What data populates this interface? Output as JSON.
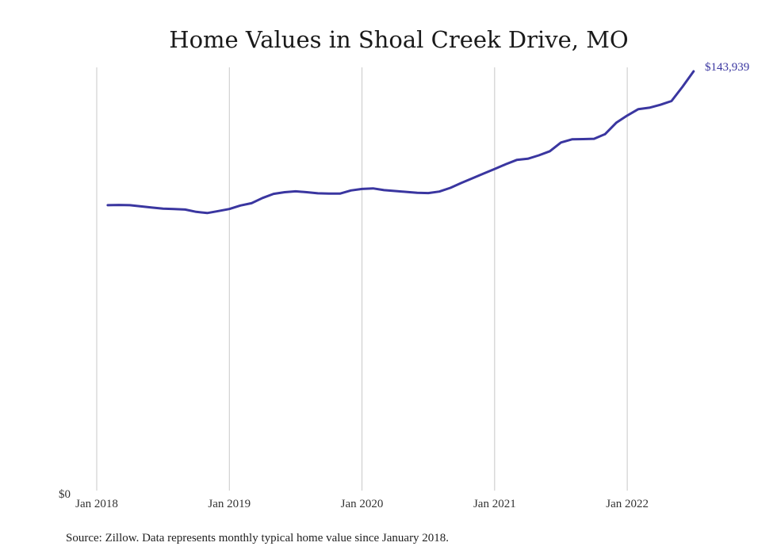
{
  "chart_data": {
    "type": "line",
    "title": "Home Values in Shoal Creek Drive, MO",
    "xlabel": "",
    "ylabel": "",
    "x_start": "2018-02",
    "x_frequency": "monthly",
    "x_ticks": [
      "Jan 2018",
      "Jan 2019",
      "Jan 2020",
      "Jan 2021",
      "Jan 2022"
    ],
    "y_tick_label": "$0",
    "ylim": [
      0,
      143939
    ],
    "grid": "vertical",
    "end_label": "$143,939",
    "series": [
      {
        "color": "#3a36a0",
        "values": [
          97800,
          97900,
          97800,
          97400,
          97000,
          96600,
          96500,
          96300,
          95500,
          95100,
          95800,
          96500,
          97700,
          98500,
          100300,
          101700,
          102300,
          102600,
          102300,
          101900,
          101800,
          101800,
          102900,
          103400,
          103600,
          103000,
          102700,
          102400,
          102100,
          102000,
          102500,
          103800,
          105500,
          107100,
          108700,
          110300,
          111900,
          113400,
          113800,
          115000,
          116400,
          119400,
          120500,
          120600,
          120700,
          122300,
          126200,
          128700,
          130900,
          131400,
          132400,
          133700,
          138600,
          143939
        ]
      }
    ]
  },
  "footer": {
    "source": "Source: Zillow. Data represents monthly typical home value since January 2018."
  }
}
